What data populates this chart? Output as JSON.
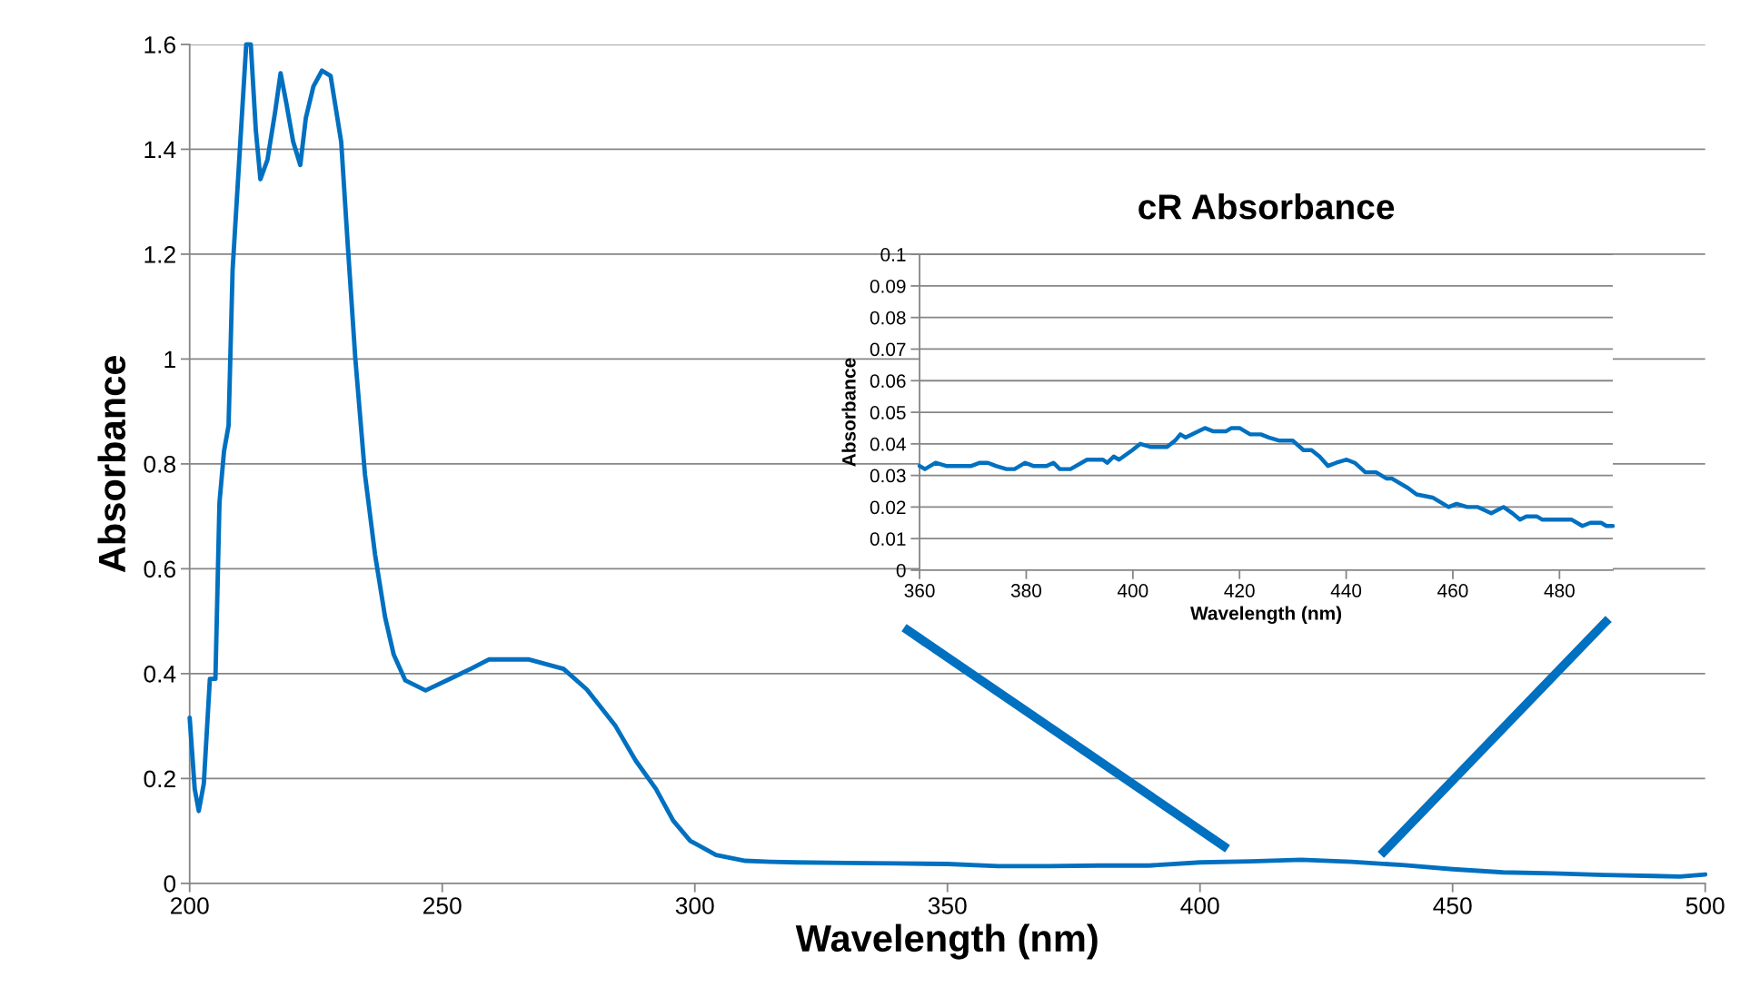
{
  "chart_data": [
    {
      "type": "line",
      "xlabel": "Wavelength (nm)",
      "ylabel": "Absorbance",
      "xlim": [
        200,
        500
      ],
      "xticks": [
        200,
        250,
        300,
        350,
        400,
        450,
        500
      ],
      "ylim": [
        0,
        1.6
      ],
      "yticks": [
        0,
        0.2,
        0.4,
        0.6,
        0.8,
        1,
        1.2,
        1.4,
        1.6
      ],
      "grid": "y",
      "series": [
        {
          "color": "#0070c0",
          "x": [
            200,
            201.0,
            201.8,
            202.8,
            204.0,
            205.1,
            205.9,
            206.8,
            207.7,
            208.5,
            210.0,
            211.2,
            212.1,
            213.1,
            214.0,
            215.4,
            216.9,
            218.0,
            219.1,
            220.5,
            221.9,
            223.0,
            224.5,
            226.2,
            227.9,
            230.0,
            231.3,
            232.8,
            234.7,
            236.7,
            238.7,
            240.4,
            242.7,
            246.7,
            251.3,
            255.8,
            259.2,
            267.2,
            274.0,
            278.6,
            284.3,
            288.3,
            292.3,
            295.7,
            299.1,
            304.2,
            310,
            315,
            320,
            330,
            340,
            350,
            360,
            370,
            380,
            390,
            400,
            410,
            420,
            430,
            440,
            450,
            460,
            470,
            480,
            490,
            495,
            500
          ],
          "values": [
            0.316,
            0.18,
            0.138,
            0.19,
            0.39,
            0.39,
            0.726,
            0.824,
            0.873,
            1.17,
            1.41,
            1.6,
            1.6,
            1.436,
            1.343,
            1.38,
            1.47,
            1.545,
            1.49,
            1.414,
            1.37,
            1.46,
            1.52,
            1.55,
            1.54,
            1.414,
            1.217,
            1.0,
            0.78,
            0.627,
            0.507,
            0.436,
            0.387,
            0.368,
            0.389,
            0.41,
            0.427,
            0.427,
            0.409,
            0.37,
            0.3,
            0.234,
            0.18,
            0.12,
            0.081,
            0.054,
            0.043,
            0.041,
            0.04,
            0.039,
            0.038,
            0.037,
            0.033,
            0.033,
            0.034,
            0.034,
            0.04,
            0.042,
            0.045,
            0.041,
            0.035,
            0.027,
            0.021,
            0.019,
            0.016,
            0.014,
            0.013,
            0.017
          ]
        }
      ]
    },
    {
      "type": "line",
      "title": "cR Absorbance",
      "xlabel": "Wavelength (nm)",
      "ylabel": "Absorbance",
      "xlim": [
        360,
        490
      ],
      "xticks": [
        360,
        380,
        400,
        420,
        440,
        460,
        480
      ],
      "ylim": [
        0,
        0.1
      ],
      "yticks": [
        0,
        0.01,
        0.02,
        0.03,
        0.04,
        0.05,
        0.06,
        0.07,
        0.08,
        0.09,
        0.1
      ],
      "grid": "y",
      "series": [
        {
          "color": "#0070c0",
          "x": [
            360,
            361,
            363,
            365,
            369.7,
            371.3,
            372.8,
            374.3,
            376.3,
            377.8,
            379.8,
            381.3,
            383.8,
            385.1,
            386.3,
            388.3,
            391.4,
            394.4,
            395.2,
            396.4,
            397.4,
            399.9,
            401.4,
            403.4,
            406.4,
            407.9,
            408.9,
            409.9,
            413.5,
            415,
            417.5,
            418.5,
            420,
            422,
            424,
            425.5,
            427.5,
            430,
            432,
            433.5,
            435,
            436.6,
            438.1,
            440.1,
            441.6,
            443.6,
            445.6,
            447.6,
            448.6,
            451.6,
            453.2,
            456.2,
            459.2,
            460.7,
            462.7,
            464.7,
            467.2,
            469.5,
            471.2,
            472.6,
            473.8,
            475.8,
            476.8,
            482.3,
            484.3,
            485.8,
            487.8,
            488.8,
            490
          ],
          "values": [
            0.033,
            0.032,
            0.034,
            0.033,
            0.033,
            0.034,
            0.034,
            0.033,
            0.032,
            0.032,
            0.034,
            0.033,
            0.033,
            0.034,
            0.032,
            0.032,
            0.035,
            0.035,
            0.034,
            0.036,
            0.035,
            0.038,
            0.04,
            0.039,
            0.039,
            0.041,
            0.043,
            0.042,
            0.045,
            0.044,
            0.044,
            0.045,
            0.045,
            0.043,
            0.043,
            0.042,
            0.041,
            0.041,
            0.038,
            0.038,
            0.036,
            0.033,
            0.034,
            0.035,
            0.034,
            0.031,
            0.031,
            0.029,
            0.029,
            0.026,
            0.024,
            0.023,
            0.02,
            0.021,
            0.02,
            0.02,
            0.018,
            0.02,
            0.018,
            0.016,
            0.017,
            0.017,
            0.016,
            0.016,
            0.014,
            0.015,
            0.015,
            0.014,
            0.014
          ]
        }
      ]
    }
  ]
}
